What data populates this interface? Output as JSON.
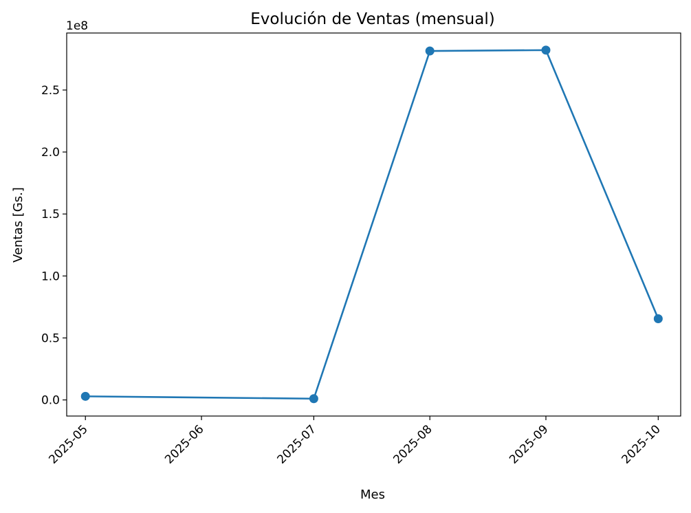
{
  "chart_data": {
    "type": "line",
    "title": "Evolución de Ventas (mensual)",
    "xlabel": "Mes",
    "ylabel": "Ventas [Gs.]",
    "y_offset_label": "1e8",
    "x_ticks": [
      "2025-05",
      "2025-06",
      "2025-07",
      "2025-08",
      "2025-09",
      "2025-10"
    ],
    "y_ticks": [
      "0.0",
      "0.5",
      "1.0",
      "1.5",
      "2.0",
      "2.5"
    ],
    "ylim": [
      -13000000,
      296000000
    ],
    "grid": false,
    "series": [
      {
        "color": "#1f77b4",
        "marker": "circle",
        "points": [
          {
            "x": "2025-05-01",
            "y": 2900000
          },
          {
            "x": "2025-07-01",
            "y": 1000000
          },
          {
            "x": "2025-08-01",
            "y": 281500000
          },
          {
            "x": "2025-09-01",
            "y": 282200000
          },
          {
            "x": "2025-10-01",
            "y": 65500000
          }
        ]
      }
    ]
  }
}
